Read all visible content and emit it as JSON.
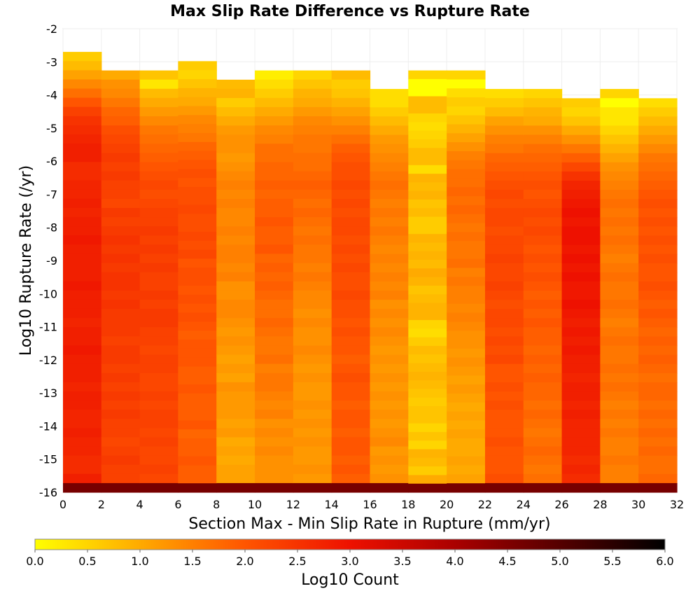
{
  "chart_data": {
    "type": "heatmap",
    "title": "Max Slip Rate Difference vs Rupture Rate",
    "xlabel": "Section Max - Min Slip Rate in Rupture (mm/yr)",
    "ylabel": "Log10 Rupture Rate (/yr)",
    "xlim": [
      0,
      32
    ],
    "ylim": [
      -16,
      -2
    ],
    "x_bin_width": 2,
    "y_bin_height": 0.28,
    "x_ticks": [
      "0",
      "2",
      "4",
      "6",
      "8",
      "10",
      "12",
      "14",
      "16",
      "18",
      "20",
      "22",
      "24",
      "26",
      "28",
      "30",
      "32"
    ],
    "y_ticks": [
      "-2",
      "-3",
      "-4",
      "-5",
      "-6",
      "-7",
      "-8",
      "-9",
      "-10",
      "-11",
      "-12",
      "-13",
      "-14",
      "-15",
      "-16"
    ],
    "grid": true,
    "colorbar": {
      "label": "Log10 Count",
      "range": [
        0.0,
        6.0
      ],
      "ticks": [
        "0.0",
        "0.5",
        "1.0",
        "1.5",
        "2.0",
        "2.5",
        "3.0",
        "3.5",
        "4.0",
        "4.5",
        "5.0",
        "5.5",
        "6.0"
      ],
      "colors": [
        "#ffff00",
        "#ffaa00",
        "#ff5500",
        "#ee1100",
        "#aa0000",
        "#550000",
        "#000000"
      ],
      "position": "bottom"
    },
    "columns": [
      {
        "x_start": 0,
        "y_top": -2.7,
        "values": [
          0.6,
          0.8,
          1.1,
          1.4,
          1.7,
          2.0,
          2.3,
          2.5,
          2.6,
          2.7,
          2.8,
          2.8,
          2.6,
          2.6,
          2.7,
          2.7,
          2.8,
          2.7,
          2.8,
          2.8,
          2.9,
          2.8,
          2.8,
          2.8,
          2.8,
          2.9,
          2.8,
          2.8,
          2.8,
          2.7,
          2.8,
          2.8,
          2.9,
          2.8,
          2.8,
          2.8,
          2.7,
          2.8,
          2.8,
          2.7,
          2.7,
          2.8,
          2.7,
          2.7,
          2.6,
          2.6,
          2.8,
          4.6
        ]
      },
      {
        "x_start": 2,
        "y_top": -3.26,
        "values": [
          1.0,
          1.3,
          1.4,
          1.6,
          1.8,
          1.9,
          2.1,
          2.2,
          2.3,
          2.4,
          2.3,
          2.4,
          2.3,
          2.3,
          2.2,
          2.4,
          2.3,
          2.4,
          2.5,
          2.4,
          2.5,
          2.4,
          2.5,
          2.5,
          2.4,
          2.5,
          2.4,
          2.4,
          2.4,
          2.3,
          2.4,
          2.4,
          2.3,
          2.4,
          2.3,
          2.4,
          2.3,
          2.4,
          2.3,
          2.3,
          2.2,
          2.3,
          2.4,
          2.3,
          2.3,
          4.6
        ]
      },
      {
        "x_start": 4,
        "y_top": -3.26,
        "values": [
          0.7,
          0.3,
          0.8,
          1.0,
          1.2,
          1.4,
          1.6,
          1.7,
          1.8,
          1.9,
          2.0,
          2.1,
          2.2,
          2.1,
          2.2,
          2.3,
          2.3,
          2.4,
          2.3,
          2.4,
          2.3,
          2.4,
          2.3,
          2.3,
          2.4,
          2.3,
          2.4,
          2.4,
          2.3,
          2.3,
          2.2,
          2.3,
          2.3,
          2.2,
          2.2,
          2.3,
          2.2,
          2.3,
          2.3,
          2.2,
          2.3,
          2.2,
          2.2,
          2.3,
          2.2,
          4.6
        ]
      },
      {
        "x_start": 6,
        "y_top": -2.98,
        "values": [
          0.6,
          0.5,
          0.7,
          0.9,
          1.0,
          1.2,
          1.4,
          1.5,
          1.6,
          1.8,
          1.9,
          2.0,
          2.1,
          2.0,
          2.1,
          2.1,
          2.2,
          2.1,
          2.1,
          2.2,
          2.1,
          2.2,
          2.0,
          2.1,
          2.1,
          2.0,
          2.1,
          2.0,
          2.1,
          2.0,
          1.9,
          2.0,
          2.0,
          2.0,
          1.9,
          1.9,
          2.0,
          1.9,
          1.9,
          1.9,
          2.0,
          1.8,
          1.9,
          1.9,
          2.0,
          1.9,
          1.9,
          4.6
        ]
      },
      {
        "x_start": 8,
        "y_top": -3.54,
        "values": [
          0.8,
          0.9,
          0.6,
          0.8,
          1.0,
          1.2,
          1.3,
          1.3,
          1.2,
          1.3,
          1.4,
          1.5,
          1.4,
          1.5,
          1.4,
          1.4,
          1.5,
          1.4,
          1.5,
          1.5,
          1.4,
          1.5,
          1.3,
          1.3,
          1.4,
          1.4,
          1.3,
          1.2,
          1.3,
          1.2,
          1.1,
          1.2,
          1.1,
          1.3,
          1.2,
          1.2,
          1.2,
          1.1,
          1.2,
          1.0,
          1.1,
          1.0,
          1.1,
          1.1,
          4.6
        ]
      },
      {
        "x_start": 10,
        "y_top": -3.26,
        "values": [
          0.2,
          0.4,
          0.6,
          0.8,
          1.0,
          1.2,
          1.4,
          1.5,
          1.7,
          1.7,
          1.8,
          1.8,
          1.9,
          1.8,
          1.9,
          1.9,
          2.0,
          1.9,
          1.9,
          2.0,
          1.8,
          1.9,
          1.8,
          1.9,
          1.8,
          1.7,
          1.7,
          1.8,
          1.7,
          1.6,
          1.6,
          1.7,
          1.5,
          1.6,
          1.6,
          1.5,
          1.4,
          1.5,
          1.3,
          1.4,
          1.3,
          1.4,
          1.3,
          1.3,
          1.3,
          4.6
        ]
      },
      {
        "x_start": 12,
        "y_top": -3.26,
        "values": [
          0.5,
          0.7,
          0.9,
          1.0,
          1.2,
          1.4,
          1.5,
          1.6,
          1.6,
          1.7,
          1.7,
          1.8,
          1.9,
          1.8,
          1.7,
          1.8,
          1.7,
          1.6,
          1.7,
          1.6,
          1.6,
          1.5,
          1.6,
          1.5,
          1.4,
          1.4,
          1.3,
          1.4,
          1.3,
          1.3,
          1.4,
          1.3,
          1.2,
          1.3,
          1.2,
          1.2,
          1.3,
          1.2,
          1.3,
          1.2,
          1.3,
          1.2,
          1.2,
          1.3,
          1.2,
          4.6
        ]
      },
      {
        "x_start": 14,
        "y_top": -3.26,
        "values": [
          0.8,
          0.6,
          0.7,
          0.9,
          1.1,
          1.3,
          1.5,
          1.7,
          1.9,
          2.0,
          2.1,
          2.1,
          2.2,
          2.1,
          2.2,
          2.1,
          2.2,
          2.2,
          2.1,
          2.2,
          2.1,
          2.2,
          2.1,
          2.1,
          2.2,
          2.1,
          2.1,
          2.0,
          2.1,
          2.0,
          2.0,
          1.9,
          2.0,
          2.1,
          2.0,
          2.0,
          1.9,
          2.0,
          2.0,
          1.9,
          2.0,
          2.0,
          1.9,
          2.0,
          1.9,
          4.6
        ]
      },
      {
        "x_start": 16,
        "y_top": -3.82,
        "values": [
          0.4,
          0.4,
          0.6,
          0.8,
          1.0,
          1.2,
          1.3,
          1.4,
          1.5,
          1.6,
          1.7,
          1.6,
          1.5,
          1.6,
          1.5,
          1.6,
          1.5,
          1.4,
          1.5,
          1.4,
          1.5,
          1.4,
          1.5,
          1.3,
          1.4,
          1.3,
          1.4,
          1.3,
          1.2,
          1.3,
          1.2,
          1.3,
          1.2,
          1.3,
          1.2,
          1.3,
          1.2,
          1.3,
          1.4,
          1.2,
          1.3,
          1.2,
          1.3,
          4.6
        ]
      },
      {
        "x_start": 18,
        "y_top": -3.26,
        "values": [
          0.5,
          0.0,
          0.0,
          0.8,
          0.8,
          0.5,
          0.4,
          0.5,
          0.6,
          0.8,
          0.8,
          0.4,
          0.9,
          0.8,
          0.9,
          0.7,
          0.8,
          0.6,
          0.6,
          0.9,
          0.8,
          0.9,
          0.8,
          1.0,
          0.9,
          0.7,
          0.8,
          0.9,
          0.9,
          0.5,
          0.4,
          0.6,
          0.8,
          0.7,
          0.8,
          0.9,
          0.8,
          0.7,
          0.6,
          0.7,
          0.7,
          0.5,
          0.7,
          0.5,
          0.9,
          0.8,
          0.6,
          1.0,
          4.6
        ]
      },
      {
        "x_start": 20,
        "y_top": -3.26,
        "values": [
          0.5,
          0.0,
          0.4,
          0.6,
          0.5,
          0.7,
          0.9,
          1.1,
          1.3,
          1.5,
          1.6,
          1.7,
          1.7,
          1.8,
          1.7,
          1.8,
          1.7,
          1.6,
          1.7,
          1.6,
          1.6,
          1.7,
          1.5,
          1.6,
          1.5,
          1.5,
          1.4,
          1.5,
          1.4,
          1.3,
          1.3,
          1.2,
          1.3,
          1.2,
          1.1,
          1.2,
          1.1,
          1.0,
          1.1,
          1.0,
          1.1,
          1.0,
          1.0,
          1.1,
          1.0,
          1.1,
          4.6
        ]
      },
      {
        "x_start": 22,
        "y_top": -3.82,
        "values": [
          0.4,
          0.6,
          0.8,
          1.1,
          1.3,
          1.5,
          1.6,
          1.8,
          1.9,
          2.0,
          2.1,
          2.2,
          2.1,
          2.2,
          2.2,
          2.1,
          2.2,
          2.2,
          2.3,
          2.2,
          2.2,
          2.3,
          2.2,
          2.1,
          2.2,
          2.2,
          2.1,
          2.2,
          2.1,
          2.2,
          2.0,
          2.0,
          2.1,
          2.0,
          2.1,
          2.0,
          2.0,
          2.0,
          2.1,
          2.0,
          2.0,
          2.0,
          2.1,
          4.6
        ]
      },
      {
        "x_start": 24,
        "y_top": -3.82,
        "values": [
          0.5,
          0.7,
          0.9,
          1.0,
          1.3,
          1.5,
          1.7,
          1.8,
          1.9,
          2.0,
          2.1,
          2.0,
          2.1,
          2.2,
          2.1,
          2.2,
          2.1,
          2.0,
          2.1,
          2.0,
          2.1,
          2.0,
          1.9,
          2.0,
          1.9,
          2.0,
          1.9,
          1.9,
          1.8,
          1.9,
          1.8,
          1.9,
          1.8,
          1.8,
          1.7,
          1.8,
          1.7,
          1.6,
          1.7,
          1.8,
          1.7,
          1.6,
          1.7,
          4.6
        ]
      },
      {
        "x_start": 26,
        "y_top": -4.1,
        "values": [
          0.6,
          0.5,
          0.7,
          1.0,
          1.3,
          1.6,
          1.9,
          2.2,
          2.5,
          2.7,
          2.8,
          2.9,
          3.0,
          2.9,
          3.0,
          3.0,
          2.9,
          3.0,
          2.9,
          3.0,
          2.9,
          2.9,
          3.0,
          2.9,
          2.8,
          2.9,
          2.8,
          2.9,
          2.8,
          2.8,
          2.7,
          2.8,
          2.8,
          2.7,
          2.8,
          2.7,
          2.7,
          2.7,
          2.7,
          2.6,
          2.7,
          2.6,
          4.6
        ]
      },
      {
        "x_start": 28,
        "y_top": -3.82,
        "values": [
          0.5,
          0.0,
          0.3,
          0.3,
          0.5,
          0.7,
          0.9,
          1.1,
          1.3,
          1.4,
          1.5,
          1.6,
          1.7,
          1.6,
          1.7,
          1.6,
          1.7,
          1.6,
          1.5,
          1.6,
          1.7,
          1.6,
          1.6,
          1.7,
          1.6,
          1.5,
          1.6,
          1.7,
          1.6,
          1.6,
          1.7,
          1.6,
          1.7,
          1.6,
          1.5,
          1.6,
          1.5,
          1.6,
          1.5,
          1.5,
          1.6,
          1.5,
          1.5,
          4.6
        ]
      },
      {
        "x_start": 30,
        "y_top": -4.1,
        "values": [
          0.4,
          0.6,
          0.8,
          1.0,
          1.2,
          1.4,
          1.6,
          1.7,
          1.8,
          1.9,
          2.0,
          2.1,
          2.0,
          2.1,
          2.0,
          2.1,
          2.0,
          2.1,
          2.0,
          2.0,
          2.1,
          2.0,
          1.9,
          2.0,
          1.9,
          1.8,
          1.9,
          1.8,
          1.9,
          1.8,
          1.7,
          1.8,
          1.8,
          1.7,
          1.8,
          1.7,
          1.8,
          1.7,
          1.8,
          1.7,
          1.7,
          1.8,
          4.6
        ]
      }
    ]
  }
}
